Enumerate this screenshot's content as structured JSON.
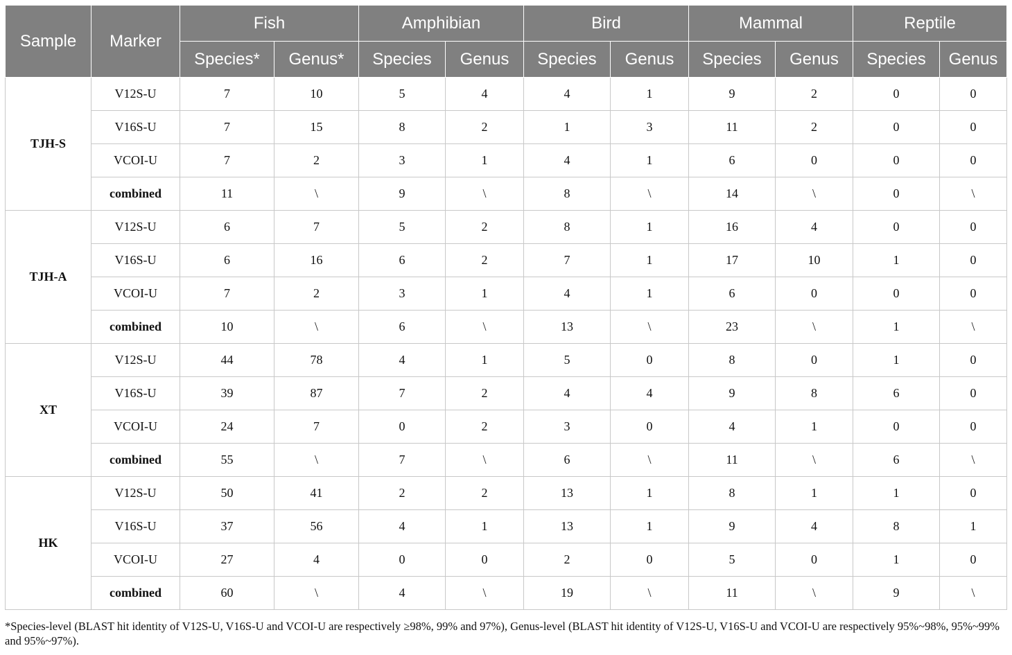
{
  "header": {
    "sample": "Sample",
    "marker": "Marker",
    "groups": [
      "Fish",
      "Amphibian",
      "Bird",
      "Mammal",
      "Reptile"
    ],
    "sub": [
      "Species*",
      "Genus*",
      "Species",
      "Genus",
      "Species",
      "Genus",
      "Species",
      "Genus",
      "Species",
      "Genus"
    ]
  },
  "groups": [
    {
      "sample": "TJH-S",
      "rows": [
        {
          "marker": "V12S-U",
          "values": [
            "7",
            "10",
            "5",
            "4",
            "4",
            "1",
            "9",
            "2",
            "0",
            "0"
          ]
        },
        {
          "marker": "V16S-U",
          "values": [
            "7",
            "15",
            "8",
            "2",
            "1",
            "3",
            "11",
            "2",
            "0",
            "0"
          ]
        },
        {
          "marker": "VCOI-U",
          "values": [
            "7",
            "2",
            "3",
            "1",
            "4",
            "1",
            "6",
            "0",
            "0",
            "0"
          ]
        },
        {
          "marker": "combined",
          "values": [
            "11",
            "\\",
            "9",
            "\\",
            "8",
            "\\",
            "14",
            "\\",
            "0",
            "\\"
          ]
        }
      ]
    },
    {
      "sample": "TJH-A",
      "rows": [
        {
          "marker": "V12S-U",
          "values": [
            "6",
            "7",
            "5",
            "2",
            "8",
            "1",
            "16",
            "4",
            "0",
            "0"
          ]
        },
        {
          "marker": "V16S-U",
          "values": [
            "6",
            "16",
            "6",
            "2",
            "7",
            "1",
            "17",
            "10",
            "1",
            "0"
          ]
        },
        {
          "marker": "VCOI-U",
          "values": [
            "7",
            "2",
            "3",
            "1",
            "4",
            "1",
            "6",
            "0",
            "0",
            "0"
          ]
        },
        {
          "marker": "combined",
          "values": [
            "10",
            "\\",
            "6",
            "\\",
            "13",
            "\\",
            "23",
            "\\",
            "1",
            "\\"
          ]
        }
      ]
    },
    {
      "sample": "XT",
      "rows": [
        {
          "marker": "V12S-U",
          "values": [
            "44",
            "78",
            "4",
            "1",
            "5",
            "0",
            "8",
            "0",
            "1",
            "0"
          ]
        },
        {
          "marker": "V16S-U",
          "values": [
            "39",
            "87",
            "7",
            "2",
            "4",
            "4",
            "9",
            "8",
            "6",
            "0"
          ]
        },
        {
          "marker": "VCOI-U",
          "values": [
            "24",
            "7",
            "0",
            "2",
            "3",
            "0",
            "4",
            "1",
            "0",
            "0"
          ]
        },
        {
          "marker": "combined",
          "values": [
            "55",
            "\\",
            "7",
            "\\",
            "6",
            "\\",
            "11",
            "\\",
            "6",
            "\\"
          ]
        }
      ]
    },
    {
      "sample": "HK",
      "rows": [
        {
          "marker": "V12S-U",
          "values": [
            "50",
            "41",
            "2",
            "2",
            "13",
            "1",
            "8",
            "1",
            "1",
            "0"
          ]
        },
        {
          "marker": "V16S-U",
          "values": [
            "37",
            "56",
            "4",
            "1",
            "13",
            "1",
            "9",
            "4",
            "8",
            "1"
          ]
        },
        {
          "marker": "VCOI-U",
          "values": [
            "27",
            "4",
            "0",
            "0",
            "2",
            "0",
            "5",
            "0",
            "1",
            "0"
          ]
        },
        {
          "marker": "combined",
          "values": [
            "60",
            "\\",
            "4",
            "\\",
            "19",
            "\\",
            "11",
            "\\",
            "9",
            "\\"
          ]
        }
      ]
    }
  ],
  "footnote": "*Species-level (BLAST hit identity of V12S-U, V16S-U and VCOI-U are respectively ≥98%, 99% and 97%), Genus-level (BLAST hit identity of V12S-U, V16S-U and VCOI-U are respectively 95%~98%, 95%~99% and 95%~97%)."
}
